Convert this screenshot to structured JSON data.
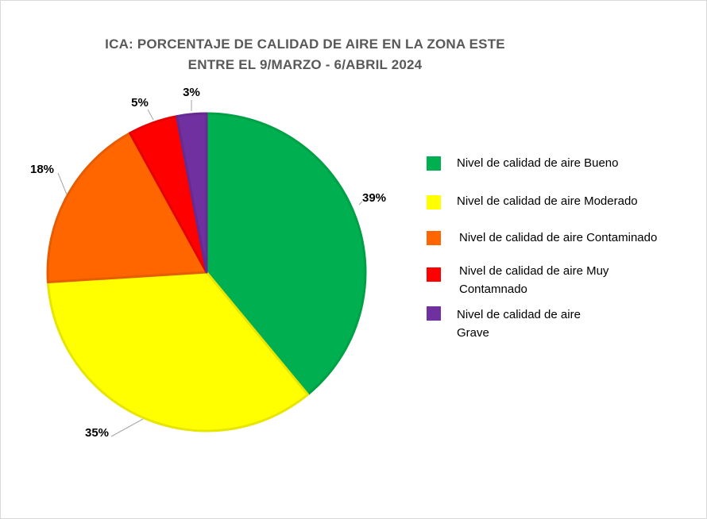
{
  "title": {
    "line1": "ICA: PORCENTAJE DE CALIDAD DE AIRE EN LA ZONA ESTE",
    "line2": "ENTRE EL 9/MARZO - 6/ABRIL 2024"
  },
  "chart_data": {
    "type": "pie",
    "title": "ICA: PORCENTAJE DE CALIDAD DE AIRE EN LA ZONA ESTE ENTRE EL 9/MARZO - 6/ABRIL 2024",
    "categories": [
      "Nivel de calidad de aire Bueno",
      "Nivel de calidad de aire Moderado",
      "Nivel de calidad de aire Contaminado",
      "Nivel de calidad de aire Muy Contamnado",
      "Nivel de calidad de aire Grave"
    ],
    "values": [
      39,
      35,
      18,
      5,
      3
    ],
    "data_labels": [
      "39%",
      "35%",
      "18%",
      "5%",
      "3%"
    ],
    "colors": [
      "#00b050",
      "#ffff00",
      "#ff6600",
      "#ff0000",
      "#7030a0"
    ],
    "border_colors": [
      "#00a047",
      "#e6e600",
      "#e65c00",
      "#e60000",
      "#652b91"
    ],
    "legend_position": "right"
  },
  "legend": {
    "items": [
      {
        "label": "Nivel de calidad de aire Bueno",
        "color": "#00b050"
      },
      {
        "label": "Nivel de calidad de aire Moderado",
        "color": "#ffff00"
      },
      {
        "label": "Nivel de calidad de aire Contaminado",
        "color": "#ff6600"
      },
      {
        "label": "Nivel de calidad de aire Muy\nContamnado",
        "color": "#ff0000"
      },
      {
        "label": "Nivel de calidad de aire\nGrave",
        "color": "#7030a0"
      }
    ]
  }
}
